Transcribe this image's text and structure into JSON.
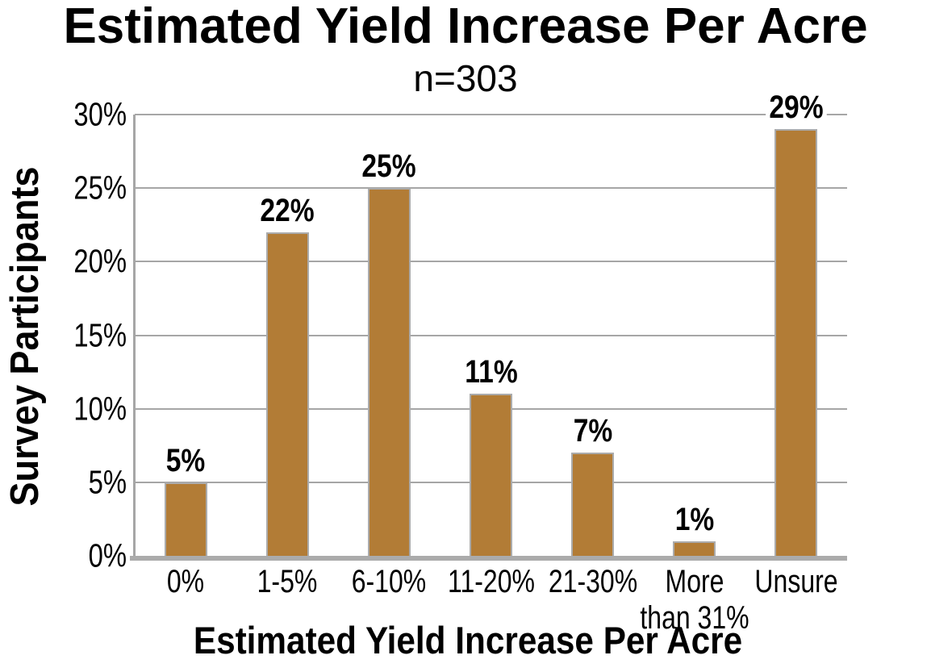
{
  "chart_data": {
    "type": "bar",
    "title": "Estimated Yield Increase Per Acre",
    "subtitle": "n=303",
    "xlabel": "Estimated Yield Increase Per Acre",
    "ylabel": "Survey Participants",
    "categories": [
      "0%",
      "1-5%",
      "6-10%",
      "11-20%",
      "21-30%",
      "More\nthan 31%",
      "Unsure"
    ],
    "values": [
      5,
      22,
      25,
      11,
      7,
      1,
      29
    ],
    "value_labels": [
      "5%",
      "22%",
      "25%",
      "11%",
      "7%",
      "1%",
      "29%"
    ],
    "yticks": [
      0,
      5,
      10,
      15,
      20,
      25,
      30
    ],
    "ytick_labels": [
      "0%",
      "5%",
      "10%",
      "15%",
      "20%",
      "25%",
      "30%"
    ],
    "ylim": [
      0,
      30
    ],
    "grid": true,
    "legend": "none",
    "colors": {
      "bar": "#B27C36",
      "bar_border": "#ABABAB",
      "gridline": "#A6A6A6",
      "axis": "#ABABAB",
      "text": "#000000",
      "background": "#FFFFFF"
    }
  }
}
